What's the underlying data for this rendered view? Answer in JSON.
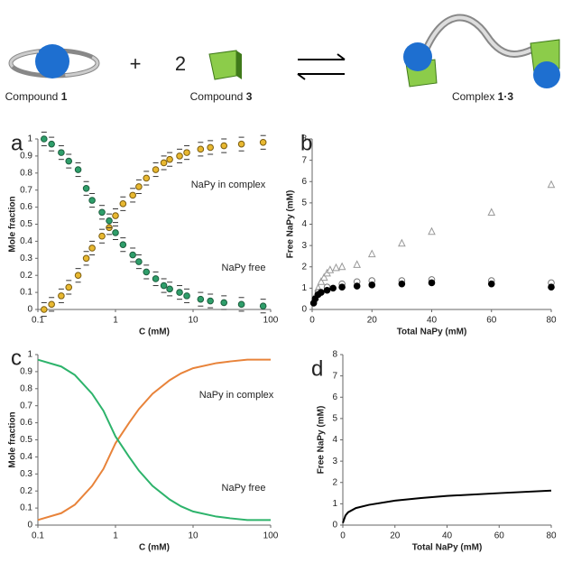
{
  "scheme": {
    "compound1": {
      "name": "Compound",
      "number": "1"
    },
    "plus": "+",
    "coefficient": "2",
    "compound3": {
      "name": "Compound",
      "number": "3"
    },
    "complex": {
      "name": "Complex",
      "number": "1·3"
    }
  },
  "chart_data": [
    {
      "type": "scatter",
      "label": "a",
      "x_label": "C (mM)",
      "y_label": "Mole fraction",
      "xscale": "log",
      "xlim": [
        0.1,
        100
      ],
      "xticks": [
        0.1,
        1,
        10,
        100
      ],
      "ylim": [
        0,
        1
      ],
      "yticks": [
        0,
        0.1,
        0.2,
        0.3,
        0.4,
        0.5,
        0.6,
        0.7,
        0.8,
        0.9,
        1
      ],
      "annotations": [
        "NaPy in complex",
        "NaPy free"
      ],
      "x": [
        0.12,
        0.15,
        0.2,
        0.25,
        0.33,
        0.42,
        0.5,
        0.67,
        0.83,
        1.0,
        1.25,
        1.67,
        2.0,
        2.5,
        3.3,
        4.2,
        5.0,
        6.7,
        8.3,
        12.5,
        16.7,
        25,
        42,
        80
      ],
      "series": [
        {
          "color": "#7a5c10",
          "fill": "#e8b830",
          "marker": "circle",
          "error": 0.04,
          "values": [
            0.0,
            0.03,
            0.08,
            0.13,
            0.2,
            0.3,
            0.36,
            0.43,
            0.48,
            0.55,
            0.62,
            0.67,
            0.72,
            0.77,
            0.82,
            0.86,
            0.88,
            0.9,
            0.92,
            0.94,
            0.95,
            0.96,
            0.97,
            0.98
          ]
        },
        {
          "color": "#1d5e3e",
          "fill": "#2e9e6a",
          "marker": "circle",
          "error": 0.04,
          "values": [
            1.0,
            0.97,
            0.92,
            0.87,
            0.82,
            0.71,
            0.64,
            0.57,
            0.52,
            0.45,
            0.38,
            0.32,
            0.28,
            0.22,
            0.18,
            0.14,
            0.12,
            0.1,
            0.08,
            0.06,
            0.05,
            0.04,
            0.03,
            0.02
          ]
        }
      ]
    },
    {
      "type": "scatter",
      "label": "b",
      "x_label": "Total NaPy  (mM)",
      "y_label": "Free NaPy  (mM)",
      "xscale": "linear",
      "xlim": [
        0,
        80
      ],
      "xticks": [
        0,
        20,
        40,
        60,
        80
      ],
      "ylim": [
        0,
        8
      ],
      "yticks": [
        0,
        1,
        2,
        3,
        4,
        5,
        6,
        7,
        8
      ],
      "series": [
        {
          "color": "#999999",
          "fill": "#ffffff",
          "marker": "triangle",
          "x": [
            1,
            2,
            3,
            4,
            5,
            6,
            8,
            10,
            15,
            20,
            30,
            40,
            60,
            80
          ],
          "values": [
            0.6,
            1.0,
            1.3,
            1.5,
            1.7,
            1.85,
            1.95,
            2.0,
            2.1,
            2.6,
            3.1,
            3.65,
            4.55,
            5.85
          ]
        },
        {
          "color": "#777777",
          "fill": "#ffffff",
          "marker": "circle",
          "x": [
            1,
            2,
            5,
            10,
            15,
            20,
            30,
            40,
            60,
            80
          ],
          "values": [
            0.5,
            0.8,
            1.05,
            1.2,
            1.3,
            1.35,
            1.35,
            1.4,
            1.35,
            1.25
          ]
        },
        {
          "color": "#000000",
          "fill": "#000000",
          "marker": "circle",
          "x": [
            0.5,
            1,
            2,
            3,
            5,
            7,
            10,
            15,
            20,
            30,
            40,
            60,
            80
          ],
          "values": [
            0.3,
            0.5,
            0.7,
            0.8,
            0.9,
            1.0,
            1.05,
            1.1,
            1.15,
            1.2,
            1.25,
            1.2,
            1.05
          ]
        }
      ]
    },
    {
      "type": "line",
      "label": "c",
      "x_label": "C (mM)",
      "y_label": "Mole fraction",
      "xscale": "log",
      "xlim": [
        0.1,
        100
      ],
      "xticks": [
        0.1,
        1,
        10,
        100
      ],
      "ylim": [
        0,
        1
      ],
      "yticks": [
        0,
        0.1,
        0.2,
        0.3,
        0.4,
        0.5,
        0.6,
        0.7,
        0.8,
        0.9,
        1
      ],
      "annotations": [
        "NaPy in complex",
        "NaPy free"
      ],
      "x": [
        0.1,
        0.2,
        0.3,
        0.5,
        0.7,
        1,
        1.5,
        2,
        3,
        5,
        7,
        10,
        20,
        30,
        50,
        70,
        100
      ],
      "series": [
        {
          "color": "#e8833a",
          "values": [
            0.03,
            0.07,
            0.12,
            0.23,
            0.33,
            0.48,
            0.6,
            0.68,
            0.77,
            0.85,
            0.89,
            0.92,
            0.95,
            0.96,
            0.97,
            0.97,
            0.97
          ]
        },
        {
          "color": "#2db36b",
          "values": [
            0.97,
            0.93,
            0.88,
            0.77,
            0.67,
            0.52,
            0.4,
            0.32,
            0.23,
            0.15,
            0.11,
            0.08,
            0.05,
            0.04,
            0.03,
            0.03,
            0.03
          ]
        }
      ]
    },
    {
      "type": "line",
      "label": "d",
      "x_label": "Total NaPy  (mM)",
      "y_label": "Free NaPy  (mM)",
      "xscale": "linear",
      "xlim": [
        0,
        80
      ],
      "xticks": [
        0,
        20,
        40,
        60,
        80
      ],
      "ylim": [
        0,
        8
      ],
      "yticks": [
        0,
        1,
        2,
        3,
        4,
        5,
        6,
        7,
        8
      ],
      "x": [
        0,
        1,
        2,
        5,
        10,
        20,
        30,
        40,
        60,
        80
      ],
      "series": [
        {
          "color": "#000000",
          "values": [
            0.1,
            0.45,
            0.6,
            0.8,
            0.95,
            1.15,
            1.27,
            1.37,
            1.5,
            1.62
          ]
        }
      ]
    }
  ]
}
